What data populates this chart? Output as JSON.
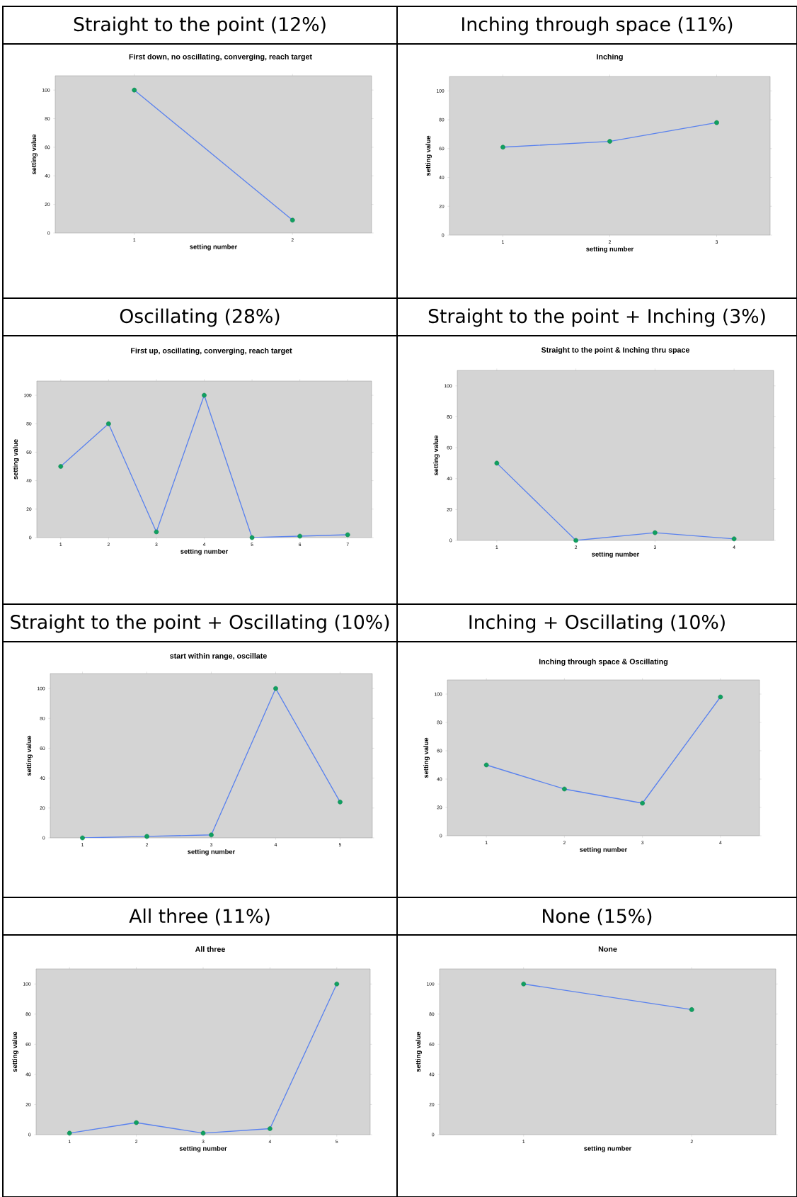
{
  "chart_data": [
    {
      "type": "line",
      "title": "Straight to the point (12%)",
      "subtitle": "First down, no oscillating, converging, reach target",
      "xlabel": "setting number",
      "ylabel": "setting value",
      "categories": [
        "1",
        "2"
      ],
      "series": [
        {
          "color": "#5a82ee",
          "values": [
            100,
            9
          ]
        }
      ],
      "ylim": [
        0,
        110
      ],
      "yticks": [
        0,
        20,
        40,
        60,
        80,
        100
      ],
      "marker": "circle"
    },
    {
      "type": "line",
      "title": "Inching through space  (11%)",
      "subtitle": "Inching",
      "xlabel": "setting number",
      "ylabel": "setting value",
      "categories": [
        "1",
        "2",
        "3"
      ],
      "series": [
        {
          "color": "#5a82ee",
          "values": [
            61,
            65,
            78
          ]
        }
      ],
      "ylim": [
        0,
        110
      ],
      "yticks": [
        0,
        20,
        40,
        60,
        80,
        100
      ],
      "marker": "circle"
    },
    {
      "type": "line",
      "title": "Oscillating (28%)",
      "subtitle": "First up, oscillating, converging, reach target",
      "xlabel": "setting number",
      "ylabel": "setting value",
      "categories": [
        "1",
        "2",
        "3",
        "4",
        "5",
        "6",
        "7"
      ],
      "series": [
        {
          "color": "#5a82ee",
          "values": [
            50,
            80,
            4,
            100,
            0,
            1,
            2
          ]
        }
      ],
      "ylim": [
        0,
        110
      ],
      "yticks": [
        0,
        20,
        40,
        60,
        80,
        100
      ],
      "marker": "circle"
    },
    {
      "type": "line",
      "title": "Straight to the point + Inching (3%)",
      "subtitle": "Straight to the point & Inching thru space",
      "xlabel": "setting number",
      "ylabel": "setting value",
      "categories": [
        "1",
        "2",
        "3",
        "4"
      ],
      "series": [
        {
          "color": "#5a82ee",
          "values": [
            50,
            0,
            5,
            1
          ]
        }
      ],
      "ylim": [
        0,
        110
      ],
      "yticks": [
        0,
        20,
        40,
        60,
        80,
        100
      ],
      "marker": "circle"
    },
    {
      "type": "line",
      "title": "Straight to the point + Oscillating (10%)",
      "subtitle": "start within range, oscillate",
      "xlabel": "setting number",
      "ylabel": "setting value",
      "categories": [
        "1",
        "2",
        "3",
        "4",
        "5"
      ],
      "series": [
        {
          "color": "#5a82ee",
          "values": [
            0,
            1,
            2,
            100,
            24
          ]
        }
      ],
      "ylim": [
        0,
        110
      ],
      "yticks": [
        0,
        20,
        40,
        60,
        80,
        100
      ],
      "marker": "circle"
    },
    {
      "type": "line",
      "title": "Inching + Oscillating (10%)",
      "subtitle": "Inching through space & Oscillating",
      "xlabel": "setting number",
      "ylabel": "setting value",
      "categories": [
        "1",
        "2",
        "3",
        "4"
      ],
      "series": [
        {
          "color": "#5a82ee",
          "values": [
            50,
            33,
            23,
            98
          ]
        }
      ],
      "ylim": [
        0,
        110
      ],
      "yticks": [
        0,
        20,
        40,
        60,
        80,
        100
      ],
      "marker": "circle"
    },
    {
      "type": "line",
      "title": "All three (11%)",
      "subtitle": "All three",
      "xlabel": "setting number",
      "ylabel": "setting value",
      "categories": [
        "1",
        "2",
        "3",
        "4",
        "5"
      ],
      "series": [
        {
          "color": "#5a82ee",
          "values": [
            1,
            8,
            1,
            4,
            100
          ]
        }
      ],
      "ylim": [
        0,
        110
      ],
      "yticks": [
        0,
        20,
        40,
        60,
        80,
        100
      ],
      "marker": "circle"
    },
    {
      "type": "line",
      "title": "None (15%)",
      "subtitle": "None",
      "xlabel": "setting number",
      "ylabel": "setting value",
      "categories": [
        "1",
        "2"
      ],
      "series": [
        {
          "color": "#5a82ee",
          "values": [
            100,
            83
          ]
        }
      ],
      "ylim": [
        0,
        110
      ],
      "yticks": [
        0,
        20,
        40,
        60,
        80,
        100
      ],
      "marker": "circle"
    }
  ]
}
